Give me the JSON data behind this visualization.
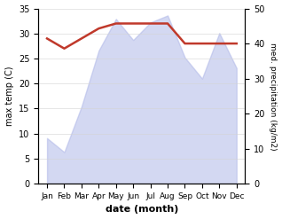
{
  "months": [
    "Jan",
    "Feb",
    "Mar",
    "Apr",
    "May",
    "Jun",
    "Jul",
    "Aug",
    "Sep",
    "Oct",
    "Nov",
    "Dec"
  ],
  "precipitation": [
    13,
    9,
    22,
    38,
    47,
    41,
    46,
    48,
    36,
    30,
    43,
    33
  ],
  "temperature": [
    29,
    27,
    29,
    31,
    32,
    32,
    32,
    32,
    28,
    28,
    28,
    28
  ],
  "precip_color": "#b0b8e8",
  "temp_color": "#c0392b",
  "ylabel_left": "max temp (C)",
  "ylabel_right": "med. precipitation (kg/m2)",
  "xlabel": "date (month)",
  "ylim_left": [
    0,
    35
  ],
  "ylim_right": [
    0,
    50
  ],
  "yticks_left": [
    0,
    5,
    10,
    15,
    20,
    25,
    30,
    35
  ],
  "yticks_right": [
    0,
    10,
    20,
    30,
    40,
    50
  ],
  "fill_alpha": 0.55
}
